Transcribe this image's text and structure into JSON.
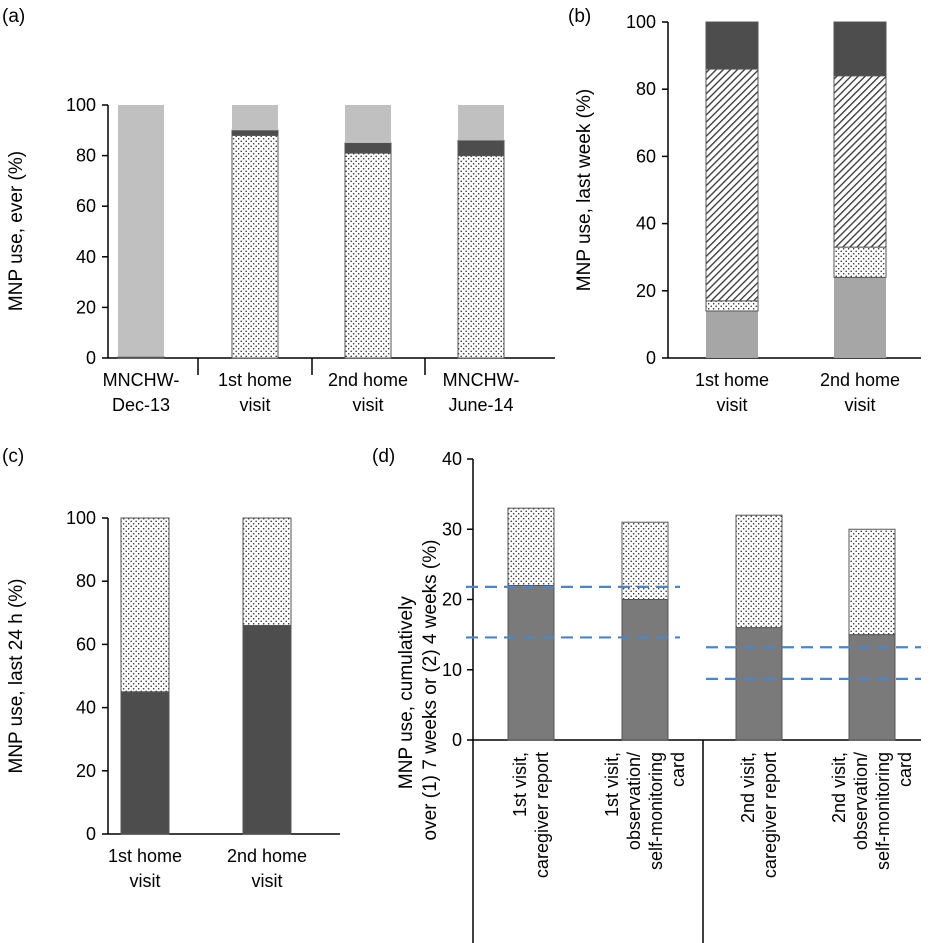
{
  "colors": {
    "light_gray": "#c0c0c0",
    "mid_gray": "#a6a6a6",
    "dark_gray": "#4d4d4d",
    "panel_d_gray": "#7a7a7a",
    "dotted_bg": "#ffffff",
    "dashed_line": "#4a86c8"
  },
  "chart_data": [
    {
      "panel": "(a)",
      "type": "bar",
      "stacked": true,
      "ylabel": "MNP use, ever (%)",
      "ylim": [
        0,
        100
      ],
      "yticks": [
        "0",
        "20",
        "40",
        "60",
        "80",
        "100"
      ],
      "categories": [
        [
          "MNCHW-",
          "Dec-13"
        ],
        [
          "1st home",
          "visit"
        ],
        [
          "2nd home",
          "visit"
        ],
        [
          "MNCHW-",
          "June-14"
        ]
      ],
      "series": [
        {
          "name": "dotted",
          "pattern": "dots",
          "values": [
            0,
            88,
            81,
            80
          ]
        },
        {
          "name": "dark",
          "pattern": "dark",
          "values": [
            0.5,
            2,
            4,
            6
          ]
        },
        {
          "name": "light",
          "pattern": "light",
          "values": [
            99.5,
            10,
            15,
            14
          ]
        }
      ]
    },
    {
      "panel": "(b)",
      "type": "bar",
      "stacked": true,
      "ylabel": "MNP use, last week (%)",
      "ylim": [
        0,
        100
      ],
      "yticks": [
        "0",
        "20",
        "40",
        "60",
        "80",
        "100"
      ],
      "categories": [
        [
          "1st home",
          "visit"
        ],
        [
          "2nd home",
          "visit"
        ]
      ],
      "series": [
        {
          "name": "gray",
          "pattern": "mid",
          "values": [
            14,
            24
          ]
        },
        {
          "name": "dotted",
          "pattern": "dots",
          "values": [
            3,
            9
          ]
        },
        {
          "name": "hatched",
          "pattern": "hatch",
          "values": [
            69,
            51
          ]
        },
        {
          "name": "dark",
          "pattern": "dark",
          "values": [
            14,
            16
          ]
        }
      ]
    },
    {
      "panel": "(c)",
      "type": "bar",
      "stacked": true,
      "ylabel": "MNP use, last 24 h (%)",
      "ylim": [
        0,
        100
      ],
      "yticks": [
        "0",
        "20",
        "40",
        "60",
        "80",
        "100"
      ],
      "categories": [
        [
          "1st home",
          "visit"
        ],
        [
          "2nd home",
          "visit"
        ]
      ],
      "series": [
        {
          "name": "dark",
          "pattern": "dark",
          "values": [
            45,
            66
          ]
        },
        {
          "name": "dotted",
          "pattern": "dots",
          "values": [
            55,
            34
          ]
        }
      ]
    },
    {
      "panel": "(d)",
      "type": "bar",
      "stacked": true,
      "ylabel": [
        "MNP use, cumulatively",
        "over (1) 7 weeks or (2) 4 weeks (%)"
      ],
      "ylim": [
        0,
        40
      ],
      "yticks": [
        "0",
        "10",
        "20",
        "30",
        "40"
      ],
      "categories": [
        [
          "1st visit,",
          "caregiver report"
        ],
        [
          "1st visit,",
          "observation/",
          "self-monitoring",
          "card"
        ],
        [
          "2nd visit,",
          "caregiver report"
        ],
        [
          "2nd visit,",
          "observation/",
          "self-monitoring",
          "card"
        ]
      ],
      "series": [
        {
          "name": "gray",
          "pattern": "dgray",
          "values": [
            22,
            20,
            16,
            15
          ]
        },
        {
          "name": "dotted",
          "pattern": "dots",
          "values": [
            11,
            11,
            16,
            15
          ]
        }
      ],
      "reference_lines": [
        {
          "group": 1,
          "value": 21.8
        },
        {
          "group": 1,
          "value": 14.6
        },
        {
          "group": 2,
          "value": 13.2
        },
        {
          "group": 2,
          "value": 8.7
        }
      ]
    }
  ]
}
